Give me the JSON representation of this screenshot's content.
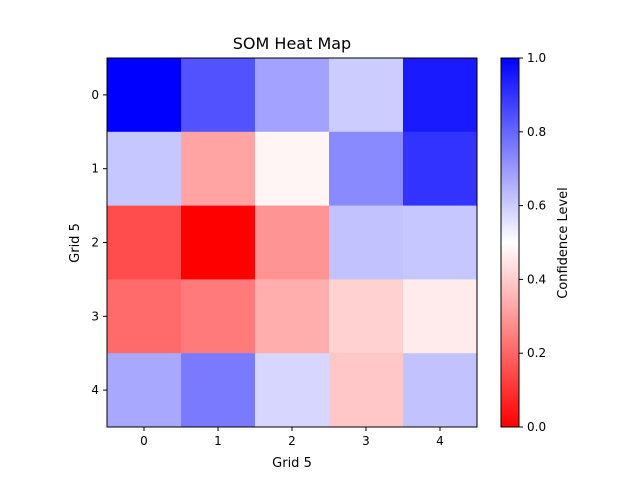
{
  "chart_data": {
    "type": "heatmap",
    "title": "SOM Heat Map",
    "xlabel": "Grid 5",
    "ylabel": "Grid 5",
    "x_ticks": [
      "0",
      "1",
      "2",
      "3",
      "4"
    ],
    "y_ticks": [
      "0",
      "1",
      "2",
      "3",
      "4"
    ],
    "values": [
      [
        1.0,
        0.84,
        0.68,
        0.6,
        0.95
      ],
      [
        0.61,
        0.32,
        0.48,
        0.73,
        0.9
      ],
      [
        0.15,
        0.0,
        0.29,
        0.62,
        0.61
      ],
      [
        0.21,
        0.24,
        0.34,
        0.41,
        0.46
      ],
      [
        0.67,
        0.76,
        0.58,
        0.39,
        0.62
      ]
    ],
    "vmin": 0.0,
    "vmax": 1.0,
    "colormap": "bwr_r",
    "colorbar": {
      "label": "Confidence Level",
      "ticks": [
        "0.0",
        "0.2",
        "0.4",
        "0.6",
        "0.8",
        "1.0"
      ]
    },
    "grid": false
  }
}
